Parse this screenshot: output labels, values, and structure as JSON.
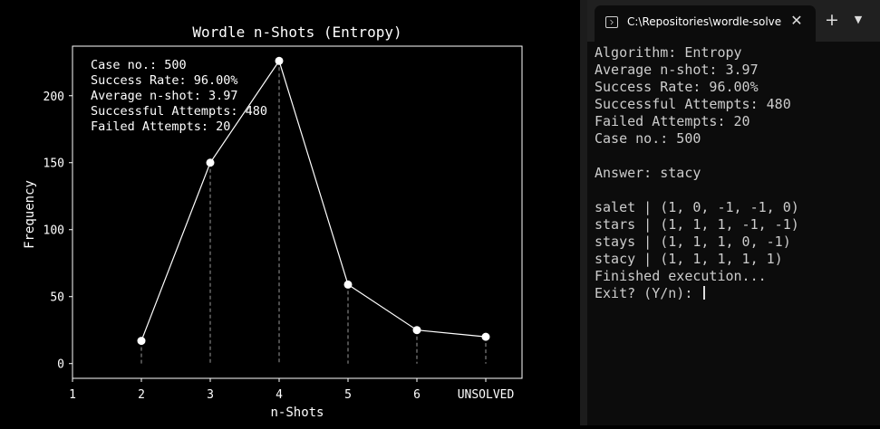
{
  "chart_data": {
    "type": "line",
    "title": "Wordle n-Shots (Entropy)",
    "xlabel": "n-Shots",
    "ylabel": "Frequency",
    "x": [
      "1",
      "2",
      "3",
      "4",
      "5",
      "6",
      "UNSOLVED"
    ],
    "series": [
      {
        "x": [
          "2",
          "3",
          "4",
          "5",
          "6",
          "UNSOLVED"
        ],
        "values": [
          17,
          150,
          226,
          59,
          25,
          20
        ]
      }
    ],
    "yticks": [
      0,
      50,
      100,
      150,
      200
    ],
    "ylim": [
      -11,
      237
    ],
    "grid": false,
    "marker_stems": true,
    "annotation_lines": [
      "Case no.: 500",
      "Success Rate: 96.00%",
      "Average n-shot: 3.97",
      "Successful Attempts: 480",
      "Failed Attempts: 20"
    ],
    "colors": {
      "background": "#000000",
      "line": "#ffffff",
      "stem": "#9a9a9a"
    }
  },
  "terminal": {
    "tab_title": "C:\\Repositories\\wordle-solver",
    "lines": [
      "Algorithm: Entropy",
      "Average n-shot: 3.97",
      "Success Rate: 96.00%",
      "Successful Attempts: 480",
      "Failed Attempts: 20",
      "Case no.: 500",
      "",
      "Answer: stacy",
      "",
      "salet | (1, 0, -1, -1, 0)",
      "stars | (1, 1, 1, -1, -1)",
      "stays | (1, 1, 1, 0, -1)",
      "stacy | (1, 1, 1, 1, 1)",
      "Finished execution...",
      "Exit? (Y/n): "
    ],
    "icons": [
      "terminal-icon",
      "close-icon",
      "plus-icon",
      "chevron-down-icon"
    ],
    "colors": {
      "background": "#0c0c0c",
      "tabbar": "#202020",
      "text": "#cccccc"
    }
  }
}
